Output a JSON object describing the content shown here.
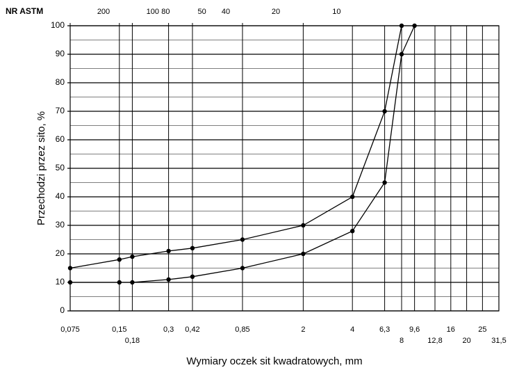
{
  "chart_data": {
    "type": "line",
    "xlabel": "Wymiary oczek sit kwadratowych, mm",
    "ylabel": "Przechodzi przez sito, %",
    "x2label": "NR ASTM",
    "log_x": true,
    "grid": true,
    "color": "#000000",
    "xlim": [
      0.075,
      31.5
    ],
    "ylim": [
      0,
      100
    ],
    "yticks": [
      0,
      10,
      20,
      30,
      40,
      50,
      60,
      70,
      80,
      90,
      100
    ],
    "yminor": [
      5,
      15,
      25,
      35,
      45,
      55,
      65,
      75,
      85,
      95
    ],
    "xticks": [
      {
        "value": 0.075,
        "label": "0,075"
      },
      {
        "value": 0.15,
        "label": "0,15"
      },
      {
        "value": 0.18,
        "label": "0,18"
      },
      {
        "value": 0.3,
        "label": "0,3"
      },
      {
        "value": 0.42,
        "label": "0,42"
      },
      {
        "value": 0.85,
        "label": "0,85"
      },
      2,
      4,
      {
        "value": 6.3,
        "label": "6,3"
      },
      8,
      {
        "value": 9.6,
        "label": "9,6"
      },
      {
        "value": 12.8,
        "label": "12,8"
      },
      16,
      20,
      25,
      {
        "value": 31.5,
        "label": "31,5"
      }
    ],
    "x2ticks": [
      {
        "value": 0.075,
        "label": "200"
      },
      {
        "value": 0.15,
        "label": "100"
      },
      {
        "value": 0.18,
        "label": "80"
      },
      {
        "value": 0.3,
        "label": "50"
      },
      {
        "value": 0.42,
        "label": "40"
      },
      {
        "value": 0.85,
        "label": "20"
      },
      {
        "value": 2,
        "label": "10"
      }
    ],
    "series": [
      {
        "color": "#000000",
        "x": [
          0.075,
          0.15,
          0.18,
          0.3,
          0.42,
          0.85,
          2,
          4,
          6.3,
          8
        ],
        "values": [
          15,
          18,
          19,
          21,
          22,
          25,
          30,
          40,
          70,
          100
        ]
      },
      {
        "color": "#000000",
        "x": [
          0.075,
          0.15,
          0.18,
          0.3,
          0.42,
          0.85,
          2,
          4,
          6.3,
          8,
          9.6
        ],
        "values": [
          10,
          10,
          10,
          11,
          12,
          15,
          20,
          28,
          45,
          90,
          100
        ]
      }
    ]
  }
}
